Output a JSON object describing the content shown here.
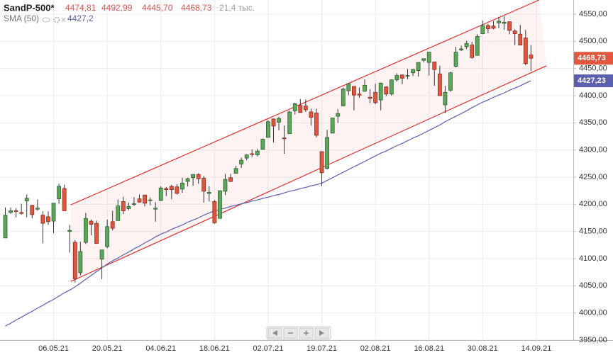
{
  "header": {
    "symbol": "SandP-500*",
    "open": "4474,81",
    "high": "4492,99",
    "low": "4445,70",
    "close": "4468,73",
    "volume": "21,4 тыс.",
    "sma_value": "4427,2"
  },
  "chart_data": {
    "type": "candlestick",
    "categories": [
      null,
      null,
      null,
      null,
      null,
      null,
      null,
      null,
      null,
      "06.05.21",
      null,
      null,
      null,
      null,
      null,
      null,
      null,
      null,
      null,
      "20.05.21",
      null,
      null,
      null,
      null,
      null,
      null,
      null,
      null,
      null,
      "04.06.21",
      null,
      null,
      null,
      null,
      null,
      null,
      null,
      null,
      null,
      "18.06.21",
      null,
      null,
      null,
      null,
      null,
      null,
      null,
      null,
      null,
      "02.07.21",
      null,
      null,
      null,
      null,
      null,
      null,
      null,
      null,
      null,
      "19.07.21",
      null,
      null,
      null,
      null,
      null,
      null,
      null,
      null,
      null,
      "02.08.21",
      null,
      null,
      null,
      null,
      null,
      null,
      null,
      null,
      null,
      "16.08.21",
      null,
      null,
      null,
      null,
      null,
      null,
      null,
      null,
      null,
      "30.08.21",
      null,
      null,
      null,
      null,
      null,
      null,
      null,
      null,
      null,
      "14.09.21"
    ],
    "open": [
      4138,
      4185,
      4188,
      4185,
      4206,
      4198,
      4191,
      4180,
      4177,
      4169,
      4210,
      4229,
      4150,
      4130,
      4074,
      4130,
      4169,
      4165,
      4099,
      4122,
      4168,
      4170,
      4205,
      4192,
      4201,
      4210,
      4217,
      4207,
      4191,
      4207,
      4229,
      4233,
      4232,
      4228,
      4242,
      4249,
      4255,
      4248,
      4220,
      4205,
      4174,
      4224,
      4249,
      4257,
      4274,
      4285,
      4293,
      4291,
      4301,
      4323,
      4357,
      4351,
      4322,
      4330,
      4372,
      4382,
      4381,
      4370,
      4368,
      4297,
      4266,
      4331,
      4362,
      4381,
      4409,
      4417,
      4403,
      4408,
      4397,
      4406,
      4392,
      4416,
      4403,
      4429,
      4438,
      4436,
      4442,
      4446,
      4465,
      4461,
      4462,
      4440,
      4383,
      4410,
      4454,
      4484,
      4490,
      4493,
      4474,
      4514,
      4529,
      4528,
      4534,
      4533,
      4536,
      4519,
      4513,
      4506,
      4474.81,
      null
    ],
    "high": [
      4194,
      4194,
      4193,
      4201,
      4218,
      4199,
      4209,
      4187,
      4187,
      4202,
      4238,
      4236,
      4162,
      4134,
      4131,
      4184,
      4172,
      4170,
      4116,
      4172,
      4188,
      4209,
      4214,
      4203,
      4213,
      4218,
      4218,
      4212,
      4204,
      4233,
      4232,
      4236,
      4237,
      4249,
      4249,
      4255,
      4257,
      4252,
      4233,
      4208,
      4225,
      4256,
      4256,
      4271,
      4286,
      4292,
      4301,
      4302,
      4321,
      4355,
      4358,
      4361,
      4345,
      4372,
      4387,
      4394,
      4393,
      4376,
      4376,
      4297,
      4337,
      4359,
      4375,
      4415,
      4423,
      4417,
      4415,
      4430,
      4412,
      4422,
      4424,
      4417,
      4430,
      4441,
      4439,
      4449,
      4449,
      4461,
      4468,
      4480,
      4462,
      4455,
      4418,
      4444,
      4490,
      4492,
      4501,
      4499,
      4513,
      4538,
      4532,
      4537,
      4545,
      4546,
      4536,
      4522,
      4530,
      4521,
      4492.99,
      null
    ],
    "low": [
      4138,
      4182,
      4176,
      4181,
      4176,
      4174,
      4188,
      4128,
      4162,
      4147,
      4201,
      4188,
      4111,
      4056,
      4069,
      4127,
      4143,
      4127,
      4062,
      4119,
      4152,
      4170,
      4182,
      4189,
      4197,
      4203,
      4196,
      4198,
      4168,
      4206,
      4215,
      4209,
      4218,
      4221,
      4233,
      4234,
      4238,
      4203,
      4205,
      4164,
      4174,
      4217,
      4241,
      4257,
      4267,
      4281,
      4287,
      4288,
      4301,
      4323,
      4314,
      4336,
      4293,
      4330,
      4365,
      4369,
      4370,
      4345,
      4323,
      4234,
      4264,
      4331,
      4350,
      4381,
      4401,
      4373,
      4396,
      4407,
      4386,
      4384,
      4373,
      4399,
      4400,
      4426,
      4421,
      4430,
      4436,
      4435,
      4461,
      4437,
      4418,
      4400,
      4368,
      4407,
      4452,
      4482,
      4486,
      4468,
      4474,
      4513,
      4515,
      4522,
      4524,
      4521,
      4513,
      4493,
      4493,
      4456,
      4445.7,
      null
    ],
    "close": [
      4180,
      4188,
      4187,
      4183,
      4211,
      4181,
      4193,
      4165,
      4168,
      4202,
      4233,
      4188,
      4152,
      4063,
      4113,
      4174,
      4163,
      4128,
      4116,
      4159,
      4156,
      4197,
      4188,
      4196,
      4201,
      4204,
      4202,
      4208,
      4193,
      4230,
      4227,
      4227,
      4220,
      4239,
      4247,
      4255,
      4247,
      4224,
      4222,
      4166,
      4225,
      4246,
      4242,
      4266,
      4281,
      4291,
      4292,
      4298,
      4320,
      4352,
      4344,
      4358,
      4321,
      4370,
      4385,
      4369,
      4374,
      4360,
      4327,
      4258,
      4323,
      4359,
      4367,
      4412,
      4422,
      4401,
      4401,
      4419,
      4395,
      4387,
      4423,
      4403,
      4429,
      4437,
      4432,
      4437,
      4448,
      4461,
      4468,
      4480,
      4448,
      4400,
      4406,
      4442,
      4480,
      4486,
      4496,
      4470,
      4509,
      4529,
      4523,
      4524,
      4537,
      4535,
      4520,
      4514,
      4493,
      4459,
      4468.73,
      null
    ],
    "up_color": "#5ba85b",
    "down_color": "#e0563e",
    "sma": {
      "name": "SMA (50)",
      "color": "#5b5fae",
      "values": [
        3976,
        3981,
        3987,
        3992,
        3998,
        4003,
        4009,
        4014,
        4020,
        4025,
        4031,
        4037,
        4042,
        4048,
        4055,
        4062,
        4069,
        4076,
        4083,
        4090,
        4096,
        4101,
        4107,
        4112,
        4118,
        4123,
        4129,
        4134,
        4140,
        4145,
        4149,
        4154,
        4158,
        4162,
        4167,
        4171,
        4175,
        4180,
        4184,
        4188,
        4191,
        4193,
        4196,
        4198,
        4201,
        4203,
        4206,
        4208,
        4211,
        4213,
        4216,
        4218,
        4221,
        4224,
        4226,
        4229,
        4231,
        4234,
        4236,
        4239,
        4244,
        4249,
        4254,
        4259,
        4264,
        4269,
        4274,
        4279,
        4284,
        4289,
        4294,
        4298,
        4303,
        4308,
        4312,
        4317,
        4322,
        4326,
        4331,
        4336,
        4341,
        4346,
        4352,
        4357,
        4362,
        4367,
        4372,
        4378,
        4383,
        4388,
        4392,
        4397,
        4401,
        4405,
        4410,
        4414,
        4418,
        4423,
        4427.2,
        null
      ]
    },
    "channel": {
      "color": "#e03030",
      "upper": [
        [
          12.2,
          4199
        ],
        [
          99.5,
          4576
        ]
      ],
      "lower": [
        [
          12.2,
          4058
        ],
        [
          100.9,
          4455
        ]
      ]
    },
    "last_price": {
      "value": 4468.73,
      "label": "4468,73"
    },
    "sma_last": {
      "value": 4427.23,
      "label": "4427,23"
    },
    "ylim": [
      3950,
      4576
    ],
    "yticks": [
      {
        "value": 3950,
        "label": "3950,00"
      },
      {
        "value": 4000,
        "label": "4000,00"
      },
      {
        "value": 4050,
        "label": "4050,00"
      },
      {
        "value": 4100,
        "label": "4100,00"
      },
      {
        "value": 4150,
        "label": "4150,00"
      },
      {
        "value": 4200,
        "label": "4200,00"
      },
      {
        "value": 4250,
        "label": "4250,00"
      },
      {
        "value": 4300,
        "label": "4300,00"
      },
      {
        "value": 4350,
        "label": "4350,00"
      },
      {
        "value": 4400,
        "label": "4400,00"
      },
      {
        "value": 4450,
        "label": "4450,00"
      },
      {
        "value": 4500,
        "label": "4500,00"
      },
      {
        "value": 4550,
        "label": "4550,00"
      }
    ],
    "grid": true
  }
}
